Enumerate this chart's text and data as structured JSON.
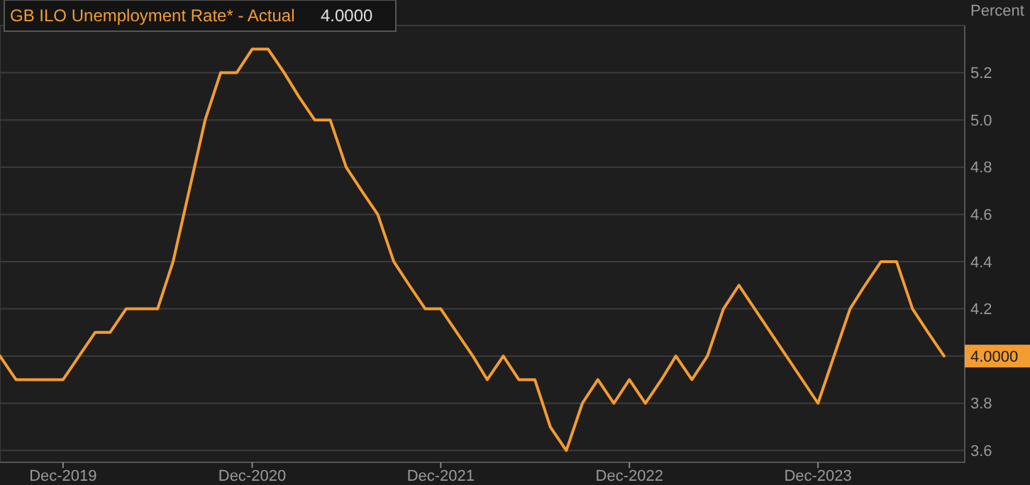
{
  "chart_data": {
    "type": "line",
    "title": "GB ILO Unemployment Rate* - Actual",
    "ylabel": "Percent",
    "x": [
      "2019-08",
      "2019-09",
      "2019-10",
      "2019-11",
      "2019-12",
      "2020-01",
      "2020-02",
      "2020-03",
      "2020-04",
      "2020-05",
      "2020-06",
      "2020-07",
      "2020-08",
      "2020-09",
      "2020-10",
      "2020-11",
      "2020-12",
      "2021-01",
      "2021-02",
      "2021-03",
      "2021-04",
      "2021-05",
      "2021-06",
      "2021-07",
      "2021-08",
      "2021-09",
      "2021-10",
      "2021-11",
      "2021-12",
      "2022-01",
      "2022-02",
      "2022-03",
      "2022-04",
      "2022-05",
      "2022-06",
      "2022-07",
      "2022-08",
      "2022-09",
      "2022-10",
      "2022-11",
      "2022-12",
      "2023-01",
      "2023-02",
      "2023-03",
      "2023-04",
      "2023-05",
      "2023-06",
      "2023-07",
      "2023-12",
      "2024-01",
      "2024-02",
      "2024-03",
      "2024-04",
      "2024-05",
      "2024-06",
      "2024-07",
      "2024-08"
    ],
    "series": [
      {
        "color": "#f39c32",
        "values": [
          4.0,
          3.9,
          3.9,
          3.9,
          3.9,
          4.0,
          4.1,
          4.1,
          4.2,
          4.2,
          4.2,
          4.4,
          4.7,
          5.0,
          5.2,
          5.2,
          5.3,
          5.3,
          5.2,
          5.1,
          5.0,
          5.0,
          4.8,
          4.7,
          4.6,
          4.4,
          4.3,
          4.2,
          4.2,
          4.1,
          4.0,
          3.9,
          4.0,
          3.9,
          3.9,
          3.7,
          3.6,
          3.8,
          3.9,
          3.8,
          3.9,
          3.8,
          3.9,
          4.0,
          3.9,
          4.0,
          4.2,
          4.3,
          3.8,
          4.0,
          4.2,
          4.3,
          4.4,
          4.4,
          4.2,
          4.1,
          4.0
        ]
      }
    ],
    "xlim": [
      "2019-08",
      "2024-09-10"
    ],
    "xticks": [
      {
        "value": "2019-12",
        "label": "Dec-2019"
      },
      {
        "value": "2020-12",
        "label": "Dec-2020"
      },
      {
        "value": "2021-12",
        "label": "Dec-2021"
      },
      {
        "value": "2022-12",
        "label": "Dec-2022"
      },
      {
        "value": "2023-12",
        "label": "Dec-2023"
      }
    ],
    "ylim": [
      3.55,
      5.4
    ],
    "yticks": [
      3.6,
      3.8,
      {
        "value": 4.0,
        "label": null
      },
      4.2,
      4.4,
      4.6,
      4.8,
      {
        "value": 5.0,
        "label": "5.0"
      },
      5.2
    ],
    "grid": "y",
    "marker": "none",
    "annotations": [
      "4.0000",
      "4.0000"
    ]
  }
}
